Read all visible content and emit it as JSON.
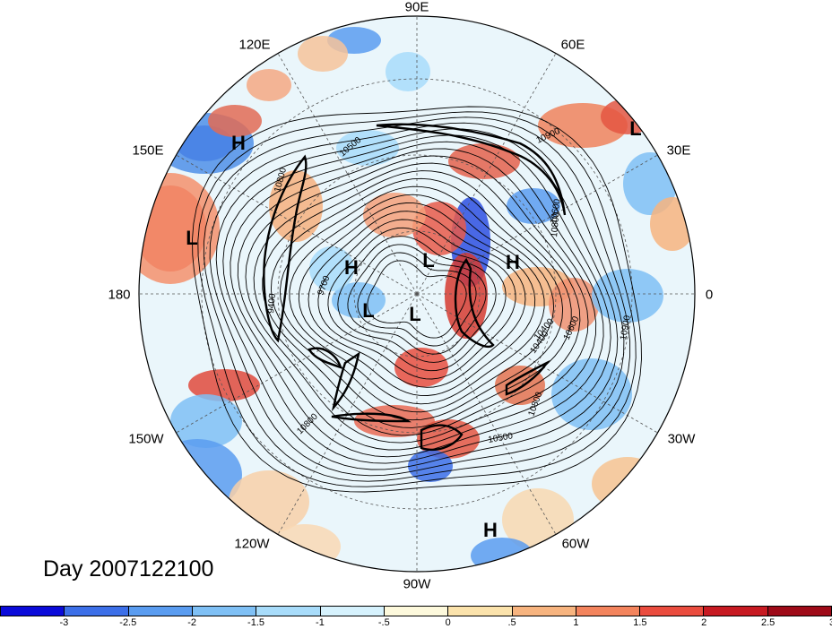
{
  "map": {
    "title": "Day 2007122100",
    "longitude_labels": [
      "90E",
      "120E",
      "60E",
      "150E",
      "30E",
      "180",
      "0",
      "150W",
      "30W",
      "120W",
      "60W",
      "90W"
    ],
    "pressure_labels": {
      "left": "H",
      "upper_right": "L",
      "left_mid": "L",
      "center_h1": "H",
      "center_l1": "L",
      "center_h2": "H",
      "center_l2": "L",
      "center_l3": "L",
      "bottom_right": "H"
    },
    "contour_labels": [
      "10900",
      "10500",
      "10800",
      "9700",
      "9400",
      "10400",
      "10600",
      "10900",
      "10800",
      "10800",
      "10500",
      "10800",
      "10600",
      "10400"
    ]
  },
  "colorbar": {
    "colors": [
      "#0a0ad9",
      "#3c6fe8",
      "#5a9cf0",
      "#7fc0f5",
      "#a8dcfa",
      "#d6f2fd",
      "#fdf9dc",
      "#fbe3ac",
      "#f7b47f",
      "#f3845d",
      "#ea4c3e",
      "#c71a22",
      "#9e0a18"
    ],
    "tick_labels": [
      "-3",
      "-2.5",
      "-2",
      "-1.5",
      "-1",
      "-.5",
      "0",
      ".5",
      "1",
      "1.5",
      "2",
      "2.5",
      "3"
    ]
  }
}
